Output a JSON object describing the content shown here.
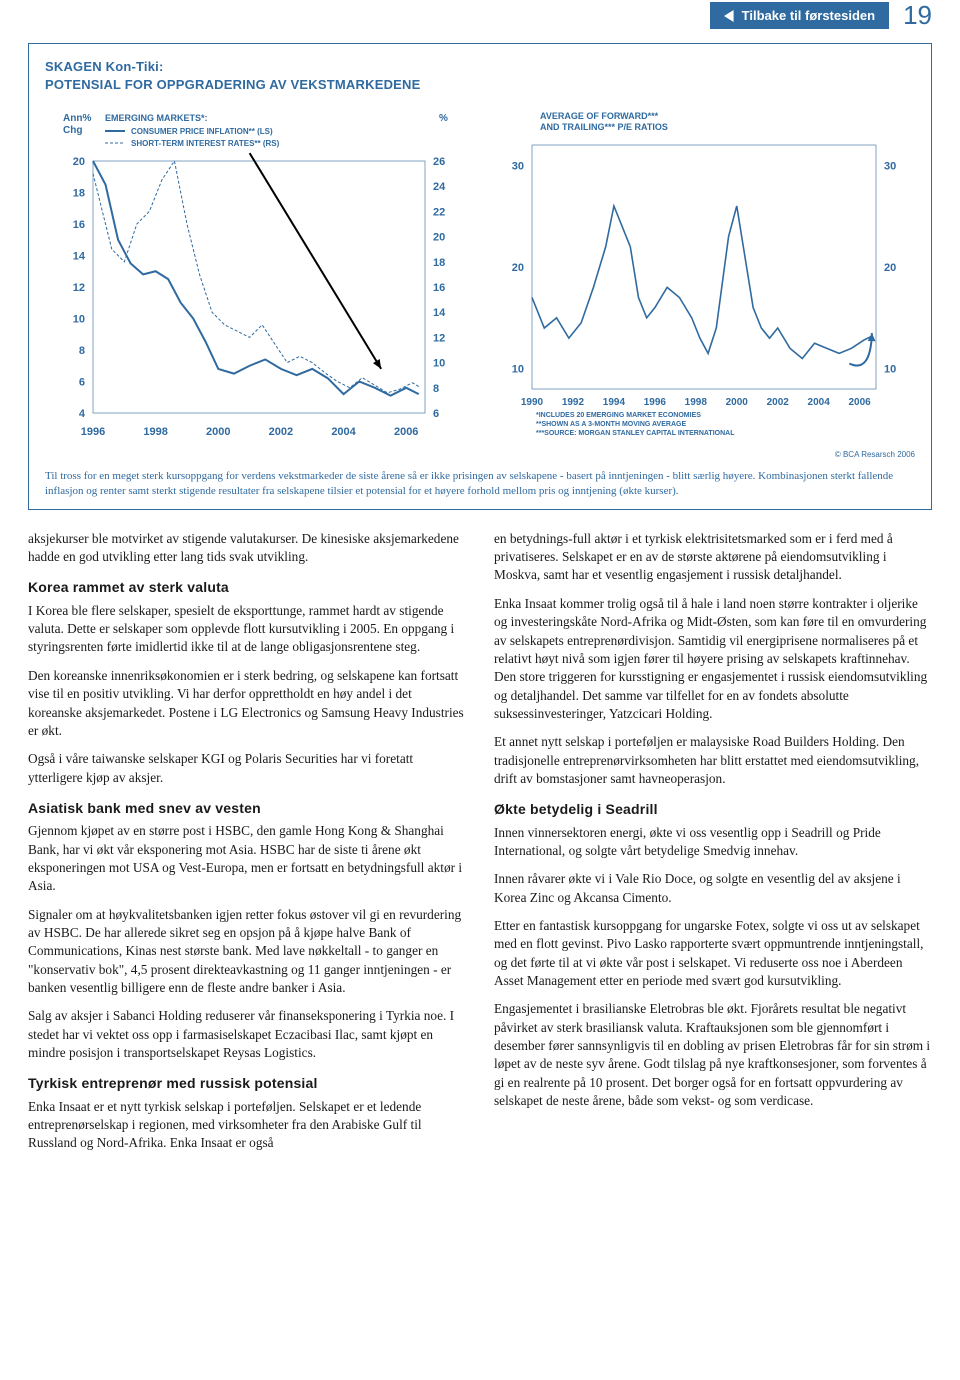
{
  "header": {
    "back_label": "Tilbake til førstesiden",
    "page_number": "19"
  },
  "box": {
    "title": "SKAGEN Kon-Tiki:",
    "subtitle": "POTENSIAL FOR OPPGRADERING AV VEKSTMARKEDENE",
    "caption": "Til tross for en meget sterk kursoppgang for verdens vekstmarkeder de siste årene så er ikke prisingen av selskapene - basert på inntjeningen - blitt særlig høyere. Kombinasjonen sterkt fallende inflasjon og renter samt sterkt stigende resultater fra selskapene tilsier et potensial for et høyere forhold mellom pris og inntjening (økte kurser).",
    "source": "© BCA Resarsch 2006"
  },
  "chart_left": {
    "type": "line",
    "left_label": "Ann%\nChg",
    "right_label": "%",
    "legend_title": "EMERGING MARKETS*:",
    "legend_solid": "CONSUMER PRICE INFLATION** (LS)",
    "legend_dashed": "SHORT-TERM INTEREST RATES** (RS)",
    "left_ticks": [
      20,
      18,
      16,
      14,
      12,
      10,
      8,
      6,
      4
    ],
    "right_ticks": [
      26,
      24,
      22,
      20,
      18,
      16,
      14,
      12,
      10,
      8,
      6
    ],
    "x_ticks": [
      "1996",
      "1998",
      "2000",
      "2002",
      "2004",
      "2006"
    ],
    "series_solid": {
      "color": "#2f6aa0",
      "width": 2,
      "points": [
        [
          1996,
          20
        ],
        [
          1996.4,
          18.5
        ],
        [
          1996.8,
          15
        ],
        [
          1997.2,
          13.5
        ],
        [
          1997.6,
          12.8
        ],
        [
          1998,
          13
        ],
        [
          1998.4,
          12.5
        ],
        [
          1998.8,
          11
        ],
        [
          1999.2,
          10
        ],
        [
          1999.6,
          8.5
        ],
        [
          2000,
          6.8
        ],
        [
          2000.5,
          6.5
        ],
        [
          2001,
          7
        ],
        [
          2001.5,
          7.4
        ],
        [
          2002,
          6.8
        ],
        [
          2002.5,
          6.4
        ],
        [
          2003,
          6.8
        ],
        [
          2003.5,
          6.2
        ],
        [
          2004,
          5.2
        ],
        [
          2004.5,
          6
        ],
        [
          2005,
          5.6
        ],
        [
          2005.5,
          5.1
        ],
        [
          2006,
          5.6
        ],
        [
          2006.4,
          5.2
        ]
      ]
    },
    "series_dashed": {
      "color": "#2f6aa0",
      "width": 1,
      "dash": "3 2",
      "points": [
        [
          1996,
          25
        ],
        [
          1996.3,
          22
        ],
        [
          1996.6,
          19
        ],
        [
          1997,
          18
        ],
        [
          1997.4,
          21
        ],
        [
          1997.8,
          22
        ],
        [
          1998.2,
          24.5
        ],
        [
          1998.6,
          26
        ],
        [
          1999,
          21
        ],
        [
          1999.4,
          17
        ],
        [
          1999.8,
          14
        ],
        [
          2000.2,
          13
        ],
        [
          2000.6,
          12.5
        ],
        [
          2001,
          12
        ],
        [
          2001.4,
          13
        ],
        [
          2001.8,
          11.5
        ],
        [
          2002.2,
          10
        ],
        [
          2002.6,
          10.5
        ],
        [
          2003,
          10
        ],
        [
          2003.4,
          9.2
        ],
        [
          2003.8,
          8.5
        ],
        [
          2004.2,
          8
        ],
        [
          2004.6,
          8.8
        ],
        [
          2005,
          8.2
        ],
        [
          2005.4,
          7.6
        ],
        [
          2005.8,
          7.9
        ],
        [
          2006.2,
          8.4
        ],
        [
          2006.4,
          8.1
        ]
      ]
    },
    "arrow": {
      "from": [
        2001,
        20.5,
        "left"
      ],
      "to": [
        2005.2,
        6.8,
        "left"
      ]
    }
  },
  "chart_right": {
    "type": "line",
    "title": "AVERAGE OF FORWARD***\nAND TRAILING*** P/E RATIOS",
    "left_ticks": [
      30,
      20,
      10
    ],
    "right_ticks": [
      30,
      20,
      10
    ],
    "x_ticks": [
      "1990",
      "1992",
      "1994",
      "1996",
      "1998",
      "2000",
      "2002",
      "2004",
      "2006"
    ],
    "series": {
      "color": "#2f6aa0",
      "width": 1.6,
      "points": [
        [
          1990,
          17
        ],
        [
          1990.6,
          14
        ],
        [
          1991.2,
          15
        ],
        [
          1991.8,
          13
        ],
        [
          1992.4,
          14.5
        ],
        [
          1993,
          18
        ],
        [
          1993.6,
          22
        ],
        [
          1994,
          26
        ],
        [
          1994.4,
          24
        ],
        [
          1994.8,
          22
        ],
        [
          1995.2,
          17
        ],
        [
          1995.6,
          15
        ],
        [
          1996,
          16
        ],
        [
          1996.6,
          18
        ],
        [
          1997.2,
          17
        ],
        [
          1997.8,
          15
        ],
        [
          1998.2,
          13
        ],
        [
          1998.6,
          11.5
        ],
        [
          1999,
          14
        ],
        [
          1999.6,
          23
        ],
        [
          2000,
          26
        ],
        [
          2000.4,
          21
        ],
        [
          2000.8,
          16
        ],
        [
          2001.2,
          14
        ],
        [
          2001.6,
          13
        ],
        [
          2002,
          14
        ],
        [
          2002.6,
          12
        ],
        [
          2003.2,
          11
        ],
        [
          2003.8,
          12.5
        ],
        [
          2004.4,
          12
        ],
        [
          2005,
          11.5
        ],
        [
          2005.6,
          12
        ],
        [
          2006.2,
          12.8
        ],
        [
          2006.6,
          13.2
        ]
      ]
    },
    "arrow_tail": {
      "from": [
        2005.5,
        10.5
      ],
      "to": [
        2006.6,
        13.5
      ]
    },
    "footnotes": [
      "*INCLUDES 20 EMERGING MARKET ECONOMIES",
      "**SHOWN AS A 3-MONTH MOVING AVERAGE",
      "***SOURCE: MORGAN STANLEY CAPITAL INTERNATIONAL"
    ]
  },
  "body": {
    "left": [
      {
        "p": "aksjekurser ble motvirket av stigende valutakurser. De kinesiske aksjemarkedene hadde en god utvikling etter lang tids svak utvikling."
      },
      {
        "h": "Korea rammet av sterk valuta"
      },
      {
        "p": "I Korea ble flere selskaper, spesielt de eksporttunge, rammet hardt av stigende valuta. Dette er selskaper som opplevde flott kursutvikling i 2005. En oppgang i styringsrenten førte imidlertid ikke til at de lange obligasjonsrentene steg."
      },
      {
        "p": "Den koreanske innenriksøkonomien er i sterk bedring, og selskapene kan fortsatt vise til en positiv utvikling. Vi har derfor opprettholdt en høy andel i det koreanske aksjemarkedet. Postene i LG Electronics og Samsung Heavy Industries er økt."
      },
      {
        "p": "Også i våre taiwanske selskaper KGI og Polaris Securities har vi foretatt ytterligere kjøp av aksjer."
      },
      {
        "h": "Asiatisk bank med snev av vesten"
      },
      {
        "p": "Gjennom kjøpet av en større post i HSBC, den gamle Hong Kong & Shanghai Bank, har vi økt vår eksponering mot Asia. HSBC har de siste ti årene økt eksponeringen mot USA og Vest-Europa, men er fortsatt en betydningsfull aktør i Asia."
      },
      {
        "p": "Signaler om at høykvalitetsbanken igjen retter fokus østover vil gi en revurdering av HSBC. De har allerede sikret seg en opsjon på å kjøpe halve Bank of Communications, Kinas nest største bank. Med lave nøkkeltall - to ganger en \"konservativ bok\", 4,5 prosent direkteavkastning og 11 ganger inntjeningen - er banken vesentlig billigere enn de fleste andre banker i Asia."
      },
      {
        "p": "Salg av aksjer i Sabanci Holding reduserer vår finanseksponering i Tyrkia noe. I stedet har vi vektet oss opp i farmasiselskapet Eczacibasi Ilac, samt kjøpt en mindre posisjon i transportselskapet Reysas Logistics."
      },
      {
        "h": "Tyrkisk entreprenør med russisk potensial"
      },
      {
        "p": "Enka Insaat er et nytt tyrkisk selskap i porteføljen. Selskapet er et ledende entreprenørselskap i regionen, med virksomheter fra den Arabiske Gulf til Russland og Nord-Afrika. Enka Insaat er også"
      }
    ],
    "right": [
      {
        "p": "en betydnings-full aktør i et tyrkisk elektrisitetsmarked som er i ferd med å privatiseres. Selskapet er en av de største aktørene på eiendomsutvikling i Moskva, samt har et vesentlig engasjement i russisk detaljhandel."
      },
      {
        "p": "Enka Insaat kommer trolig også til å hale i land noen større kontrakter i oljerike og investeringskåte Nord-Afrika og Midt-Østen, som kan føre til en omvurdering av selskapets entreprenørdivisjon. Samtidig vil energiprisene normaliseres på et relativt høyt nivå som igjen fører til høyere prising av selskapets kraftinnehav. Den store triggeren for kursstigning er engasjementet i russisk eiendomsutvikling og detaljhandel. Det samme var tilfellet for en av fondets absolutte suksessinvesteringer, Yatzcicari Holding."
      },
      {
        "p": "Et annet nytt selskap i porteføljen er malaysiske Road Builders Holding. Den tradisjonelle entreprenørvirksomheten har blitt erstattet med eiendomsutvikling, drift av bomstasjoner samt havneoperasjon."
      },
      {
        "h": "Økte betydelig i Seadrill"
      },
      {
        "p": "Innen vinnersektoren energi, økte vi oss vesentlig opp i Seadrill og Pride International, og solgte vårt betydelige Smedvig innehav."
      },
      {
        "p": "Innen råvarer økte vi i Vale Rio Doce, og solgte en vesentlig del av aksjene i Korea Zinc og Akcansa Cimento."
      },
      {
        "p": "Etter en fantastisk kursoppgang for ungarske Fotex, solgte vi oss ut av selskapet med en flott gevinst. Pivo Lasko rapporterte svært oppmuntrende inntjeningstall, og det førte til at vi økte vår post i selskapet. Vi reduserte oss noe i Aberdeen Asset Management etter en periode med svært god kursutvikling."
      },
      {
        "p": "Engasjementet i brasilianske Eletrobras ble økt. Fjorårets resultat ble negativt påvirket av sterk brasiliansk valuta. Kraftauksjonen som ble gjennomført i desember fører sannsynligvis til en dobling av prisen Eletrobras får for sin strøm i løpet av de neste syv årene. Godt tilslag på nye kraftkonsesjoner, som forventes å gi en realrente på 10 prosent. Det borger også for en fortsatt oppvurdering av selskapet de neste årene, både som vekst- og som verdicase."
      }
    ]
  }
}
